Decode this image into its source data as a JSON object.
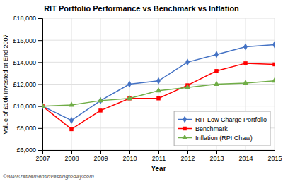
{
  "chart_data": {
    "type": "line",
    "title": "RIT Portfolio Performance vs Benchmark vs Inflation",
    "xlabel": "Year",
    "ylabel": "Value of £10k Invested at End 2007",
    "x": [
      2007,
      2008,
      2009,
      2010,
      2011,
      2012,
      2013,
      2014,
      2015
    ],
    "series": [
      {
        "name": "RIT Low Charge Portfolio",
        "color": "#4472C4",
        "marker": "diamond",
        "values": [
          10000,
          8700,
          10500,
          12000,
          12300,
          14000,
          14700,
          15400,
          15600
        ]
      },
      {
        "name": "Benchmark",
        "color": "#FF0000",
        "marker": "square",
        "values": [
          10000,
          7900,
          9600,
          10700,
          10700,
          11900,
          13200,
          13900,
          13800
        ]
      },
      {
        "name": "Inflation (RPI Chaw)",
        "color": "#70AD47",
        "marker": "triangle",
        "values": [
          10000,
          10100,
          10500,
          10700,
          11400,
          11700,
          12000,
          12100,
          12300
        ]
      }
    ],
    "xlim": [
      2007,
      2015
    ],
    "xticks": [
      2007,
      2008,
      2009,
      2010,
      2011,
      2012,
      2013,
      2014,
      2015
    ],
    "ylim": [
      6000,
      18000
    ],
    "yticks": [
      {
        "value": 6000,
        "label": "£6,000"
      },
      {
        "value": 8000,
        "label": "£8,000"
      },
      {
        "value": 10000,
        "label": "£10,000"
      },
      {
        "value": 12000,
        "label": "£12,000"
      },
      {
        "value": 14000,
        "label": "£14,000"
      },
      {
        "value": 16000,
        "label": "£16,000"
      },
      {
        "value": 18000,
        "label": "£18,000"
      }
    ],
    "grid": true,
    "legend": "lower right",
    "annotations": [
      "©www.retirementinvestingtoday.com"
    ]
  }
}
